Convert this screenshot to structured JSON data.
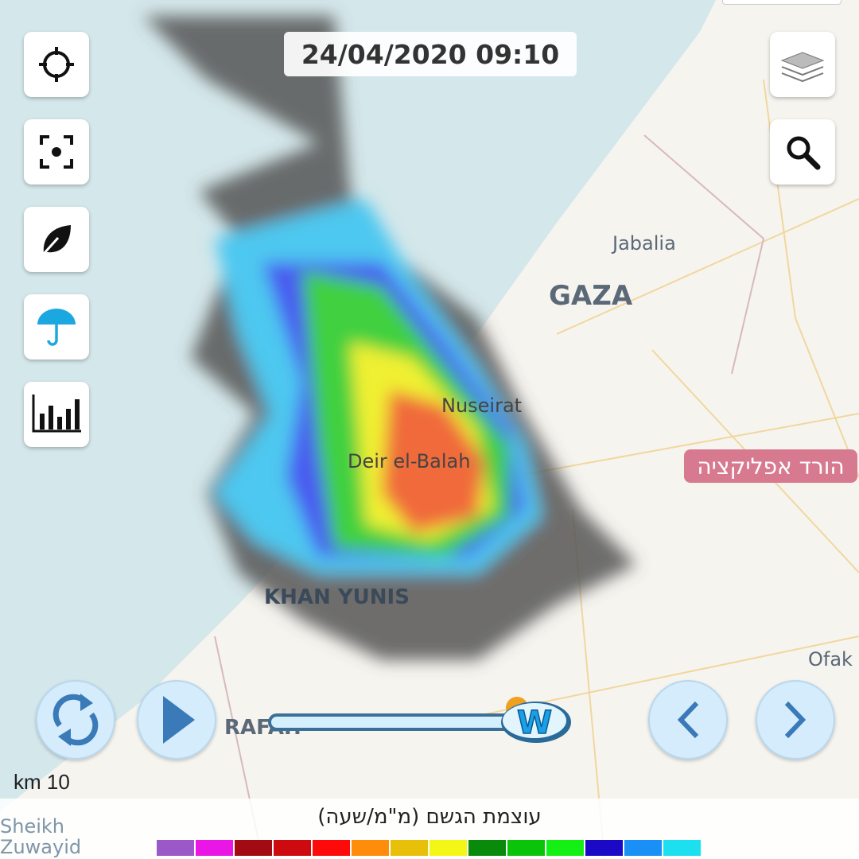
{
  "timestamp": "24/04/2020 09:10",
  "map_labels": {
    "jabalia": "Jabalia",
    "gaza": "GAZA",
    "nuseirat": "Nuseirat",
    "deir": "Deir el-Balah",
    "khan": "KHAN YUNIS",
    "rafah": "RAFAH",
    "ofak": "Ofak",
    "sheikh": "Sheikh\nZuwayid"
  },
  "scale": "km 10",
  "promo": "הורד אפליקציה",
  "legend": {
    "title": "עוצמת הגשם (מ\"מ/שעה)",
    "colors": [
      "#9b59c8",
      "#e916e6",
      "#a30b14",
      "#cc0a0f",
      "#ff0a0a",
      "#ff8c0a",
      "#e8c00a",
      "#f4f716",
      "#0a8a0a",
      "#0ac40a",
      "#14f014",
      "#1a0ac8",
      "#1890f6",
      "#1ce0f0"
    ]
  },
  "slider": {
    "progress": 1.0
  },
  "left_tools": [
    "locate-icon",
    "focus-icon",
    "leaf-icon",
    "umbrella-icon",
    "chart-icon"
  ],
  "right_tools": [
    "layers-icon",
    "search-icon"
  ],
  "colors": {
    "accent": "#3a7ab8",
    "sea": "#d4e7ea",
    "land": "#f6f4ef"
  }
}
